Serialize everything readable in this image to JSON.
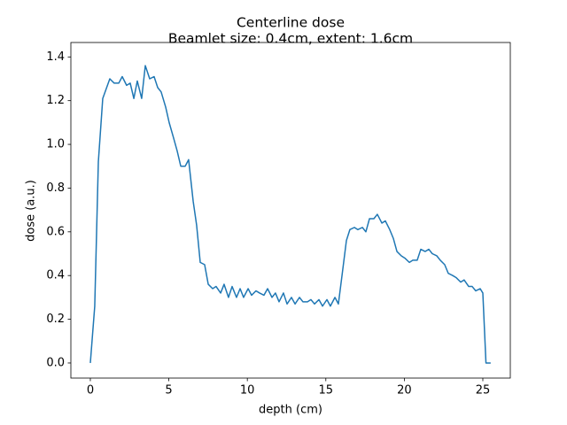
{
  "chart_data": {
    "type": "line",
    "title": "Centerline dose",
    "subtitle": "Beamlet size: 0.4cm, extent: 1.6cm",
    "x_label": "depth (cm)",
    "y_label": "dose (a.u.)",
    "color": "#1f77b4",
    "x": [
      0,
      0.28,
      0.51,
      0.79,
      1.24,
      1.52,
      1.81,
      2.03,
      2.31,
      2.54,
      2.77,
      2.99,
      3.27,
      3.5,
      3.78,
      4.06,
      4.29,
      4.51,
      4.8,
      5.02,
      5.3,
      5.53,
      5.76,
      6.04,
      6.26,
      6.55,
      6.77,
      7.0,
      7.28,
      7.51,
      7.79,
      8.01,
      8.3,
      8.52,
      8.8,
      9.03,
      9.31,
      9.54,
      9.76,
      10.05,
      10.27,
      10.55,
      10.78,
      11.06,
      11.29,
      11.57,
      11.79,
      12.02,
      12.3,
      12.53,
      12.81,
      13.04,
      13.32,
      13.54,
      13.83,
      14.05,
      14.28,
      14.56,
      14.79,
      15.07,
      15.29,
      15.58,
      15.8,
      16.03,
      16.31,
      16.53,
      16.82,
      17.04,
      17.33,
      17.55,
      17.78,
      18.06,
      18.28,
      18.57,
      18.79,
      19.07,
      19.3,
      19.53,
      19.81,
      20.03,
      20.32,
      20.54,
      20.82,
      21.05,
      21.33,
      21.56,
      21.78,
      22.07,
      22.29,
      22.57,
      22.8,
      23.08,
      23.31,
      23.59,
      23.81,
      24.1,
      24.32,
      24.55,
      24.83,
      25.0,
      25.2,
      25.5
    ],
    "values": [
      0,
      0.26,
      0.92,
      1.21,
      1.3,
      1.28,
      1.28,
      1.31,
      1.27,
      1.28,
      1.21,
      1.29,
      1.21,
      1.36,
      1.3,
      1.31,
      1.26,
      1.24,
      1.17,
      1.1,
      1.03,
      0.97,
      0.9,
      0.9,
      0.93,
      0.74,
      0.63,
      0.46,
      0.45,
      0.36,
      0.34,
      0.35,
      0.32,
      0.36,
      0.3,
      0.35,
      0.3,
      0.34,
      0.3,
      0.34,
      0.31,
      0.33,
      0.32,
      0.31,
      0.34,
      0.3,
      0.32,
      0.28,
      0.32,
      0.27,
      0.3,
      0.27,
      0.3,
      0.28,
      0.28,
      0.29,
      0.27,
      0.29,
      0.26,
      0.29,
      0.26,
      0.3,
      0.27,
      0.4,
      0.56,
      0.61,
      0.62,
      0.61,
      0.62,
      0.6,
      0.66,
      0.66,
      0.68,
      0.64,
      0.65,
      0.61,
      0.57,
      0.51,
      0.49,
      0.48,
      0.46,
      0.47,
      0.47,
      0.52,
      0.51,
      0.52,
      0.5,
      0.49,
      0.47,
      0.45,
      0.41,
      0.4,
      0.39,
      0.37,
      0.38,
      0.35,
      0.35,
      0.33,
      0.34,
      0.32,
      0,
      0
    ],
    "xlim": [
      -1.24,
      26.75
    ],
    "ylim": [
      -0.069,
      1.466
    ],
    "xticks": [
      0,
      5,
      10,
      15,
      20,
      25
    ],
    "yticks": [
      {
        "value": 0,
        "label": "0.0"
      },
      0.2,
      0.4,
      0.6,
      0.8,
      {
        "value": 1,
        "label": "1.0"
      },
      1.2,
      1.4
    ]
  }
}
